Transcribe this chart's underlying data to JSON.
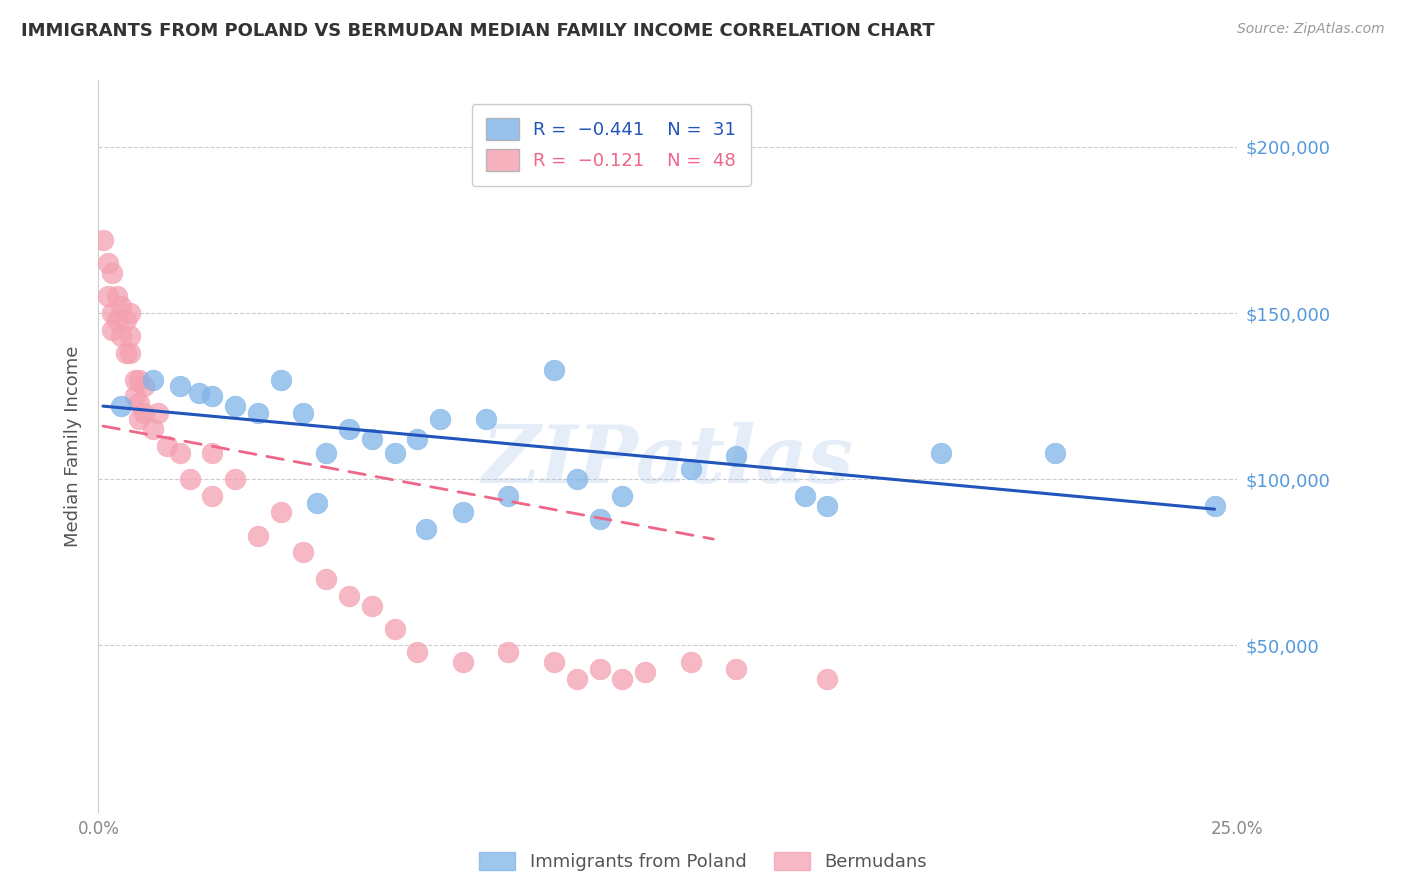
{
  "title": "IMMIGRANTS FROM POLAND VS BERMUDAN MEDIAN FAMILY INCOME CORRELATION CHART",
  "source": "Source: ZipAtlas.com",
  "ylabel": "Median Family Income",
  "xlim": [
    0.0,
    0.25
  ],
  "ylim": [
    0,
    220000
  ],
  "yticks": [
    50000,
    100000,
    150000,
    200000
  ],
  "ytick_labels": [
    "$50,000",
    "$100,000",
    "$150,000",
    "$200,000"
  ],
  "xticks": [
    0.0,
    0.05,
    0.1,
    0.15,
    0.2,
    0.25
  ],
  "xtick_labels": [
    "0.0%",
    "",
    "",
    "",
    "",
    "25.0%"
  ],
  "blue_color": "#7FB3E8",
  "pink_color": "#F4A0B0",
  "line_blue": "#2255BB",
  "line_pink": "#EE6688",
  "axis_color": "#5599DD",
  "watermark": "ZIPatlas",
  "scatter_blue_x": [
    0.005,
    0.012,
    0.018,
    0.022,
    0.025,
    0.03,
    0.035,
    0.04,
    0.045,
    0.05,
    0.055,
    0.06,
    0.065,
    0.07,
    0.075,
    0.08,
    0.085,
    0.09,
    0.1,
    0.105,
    0.11,
    0.115,
    0.13,
    0.14,
    0.155,
    0.16,
    0.185,
    0.21,
    0.245,
    0.048,
    0.072
  ],
  "scatter_blue_y": [
    122000,
    130000,
    128000,
    126000,
    125000,
    122000,
    120000,
    130000,
    120000,
    108000,
    115000,
    112000,
    108000,
    112000,
    118000,
    90000,
    118000,
    95000,
    133000,
    100000,
    88000,
    95000,
    103000,
    107000,
    95000,
    92000,
    108000,
    108000,
    92000,
    93000,
    85000
  ],
  "scatter_pink_x": [
    0.001,
    0.002,
    0.002,
    0.003,
    0.003,
    0.003,
    0.004,
    0.004,
    0.005,
    0.005,
    0.006,
    0.006,
    0.007,
    0.007,
    0.007,
    0.008,
    0.008,
    0.009,
    0.009,
    0.009,
    0.01,
    0.01,
    0.012,
    0.013,
    0.015,
    0.018,
    0.02,
    0.025,
    0.025,
    0.03,
    0.035,
    0.04,
    0.045,
    0.05,
    0.055,
    0.06,
    0.065,
    0.07,
    0.08,
    0.09,
    0.1,
    0.105,
    0.11,
    0.115,
    0.12,
    0.13,
    0.14,
    0.16
  ],
  "scatter_pink_y": [
    172000,
    165000,
    155000,
    162000,
    150000,
    145000,
    155000,
    148000,
    152000,
    143000,
    148000,
    138000,
    150000,
    143000,
    138000,
    130000,
    125000,
    130000,
    123000,
    118000,
    128000,
    120000,
    115000,
    120000,
    110000,
    108000,
    100000,
    108000,
    95000,
    100000,
    83000,
    90000,
    78000,
    70000,
    65000,
    62000,
    55000,
    48000,
    45000,
    48000,
    45000,
    40000,
    43000,
    40000,
    42000,
    45000,
    43000,
    40000
  ],
  "blue_line_x": [
    0.001,
    0.245
  ],
  "blue_line_y": [
    122000,
    91000
  ],
  "pink_line_x": [
    0.001,
    0.135
  ],
  "pink_line_y": [
    116000,
    82000
  ]
}
